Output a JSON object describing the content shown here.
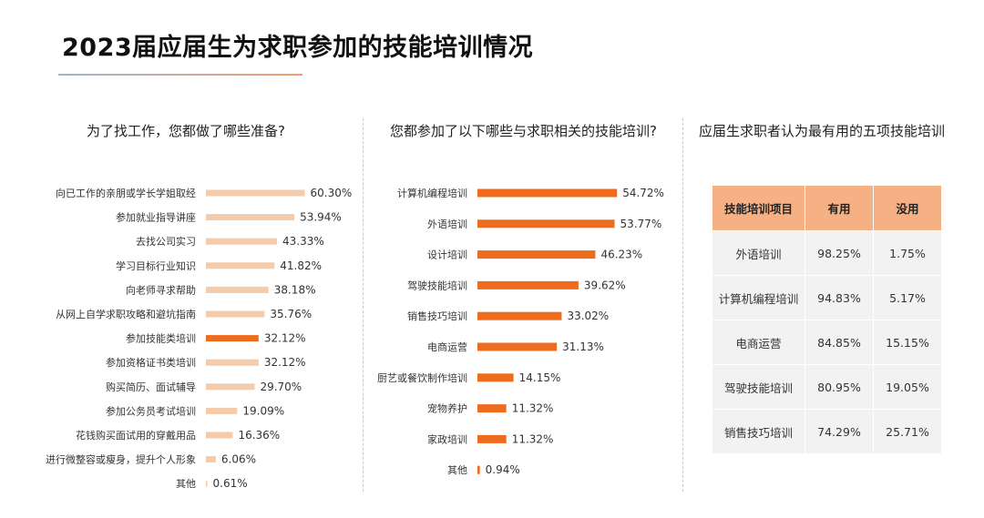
{
  "title": "2023届应届生为求职参加的技能培训情况",
  "chart_data": [
    {
      "type": "bar",
      "orientation": "horizontal",
      "title": "为了找工作，您都做了哪些准备?",
      "categories": [
        "向已工作的亲朋或学长学姐取经",
        "参加就业指导讲座",
        "去找公司实习",
        "学习目标行业知识",
        "向老师寻求帮助",
        "从网上自学求职攻略和避坑指南",
        "参加技能类培训",
        "参加资格证书类培训",
        "购买简历、面试辅导",
        "参加公务员考试培训",
        "花钱购买面试用的穿戴用品",
        "进行微整容或瘦身，提升个人形象",
        "其他"
      ],
      "values": [
        60.3,
        53.94,
        43.33,
        41.82,
        38.18,
        35.76,
        32.12,
        32.12,
        29.7,
        19.09,
        16.36,
        6.06,
        0.61
      ],
      "labels": [
        "60.30%",
        "53.94%",
        "43.33%",
        "41.82%",
        "38.18%",
        "35.76%",
        "32.12%",
        "32.12%",
        "29.70%",
        "19.09%",
        "16.36%",
        "6.06%",
        "0.61%"
      ],
      "highlight_index": 6,
      "bar_color": "#f4cbab",
      "highlight_color": "#ee6c1e"
    },
    {
      "type": "bar",
      "orientation": "horizontal",
      "title": "您都参加了以下哪些与求职相关的技能培训?",
      "categories": [
        "计算机编程培训",
        "外语培训",
        "设计培训",
        "驾驶技能培训",
        "销售技巧培训",
        "电商运营",
        "厨艺或餐饮制作培训",
        "宠物养护",
        "家政培训",
        "其他"
      ],
      "values": [
        54.72,
        53.77,
        46.23,
        39.62,
        33.02,
        31.13,
        14.15,
        11.32,
        11.32,
        0.94
      ],
      "labels": [
        "54.72%",
        "53.77%",
        "46.23%",
        "39.62%",
        "33.02%",
        "31.13%",
        "14.15%",
        "11.32%",
        "11.32%",
        "0.94%"
      ],
      "bar_color": "#ee6c1e"
    },
    {
      "type": "table",
      "title": "应届生求职者认为最有用的五项技能培训",
      "columns": [
        "技能培训项目",
        "有用",
        "没用"
      ],
      "rows": [
        [
          "外语培训",
          "98.25%",
          "1.75%"
        ],
        [
          "计算机编程培训",
          "94.83%",
          "5.17%"
        ],
        [
          "电商运营",
          "84.85%",
          "15.15%"
        ],
        [
          "驾驶技能培训",
          "80.95%",
          "19.05%"
        ],
        [
          "销售技巧培训",
          "74.29%",
          "25.71%"
        ]
      ]
    }
  ]
}
